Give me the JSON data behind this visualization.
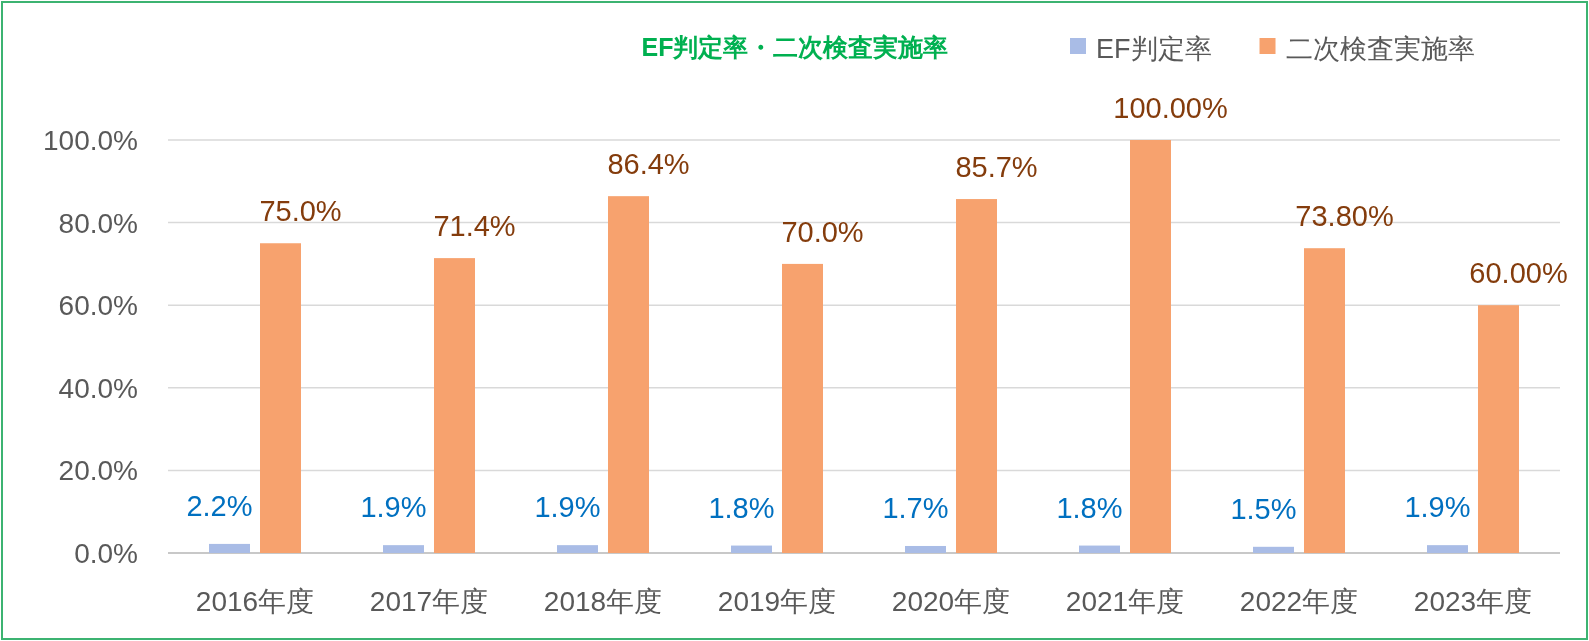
{
  "chart_data": {
    "type": "bar",
    "title": "EF判定率・二次検査実施率",
    "categories": [
      "2016年度",
      "2017年度",
      "2018年度",
      "2019年度",
      "2020年度",
      "2021年度",
      "2022年度",
      "2023年度"
    ],
    "series": [
      {
        "name": "EF判定率",
        "color": "#a9bce6",
        "values": [
          2.2,
          1.9,
          1.9,
          1.8,
          1.7,
          1.8,
          1.5,
          1.9
        ],
        "value_labels": [
          "2.2%",
          "1.9%",
          "1.9%",
          "1.8%",
          "1.7%",
          "1.8%",
          "1.5%",
          "1.9%"
        ]
      },
      {
        "name": "二次検査実施率",
        "color": "#f7a26e",
        "values": [
          75.0,
          71.4,
          86.4,
          70.0,
          85.7,
          100,
          73.8,
          60.0
        ],
        "value_labels": [
          "75.0%",
          "71.4%",
          "86.4%",
          "70.0%",
          "85.7%",
          "100.00%",
          "73.80%",
          "60.00%"
        ]
      }
    ],
    "ylim": [
      0,
      100
    ],
    "yticks": [
      {
        "value": 0,
        "label": "0.0%"
      },
      {
        "value": 20,
        "label": "20.0%"
      },
      {
        "value": 40,
        "label": "40.0%"
      },
      {
        "value": 60,
        "label": "60.0%"
      },
      {
        "value": 80,
        "label": "80.0%"
      },
      {
        "value": 100,
        "label": "100.0%"
      }
    ],
    "grid": "y",
    "legend": "top right"
  }
}
